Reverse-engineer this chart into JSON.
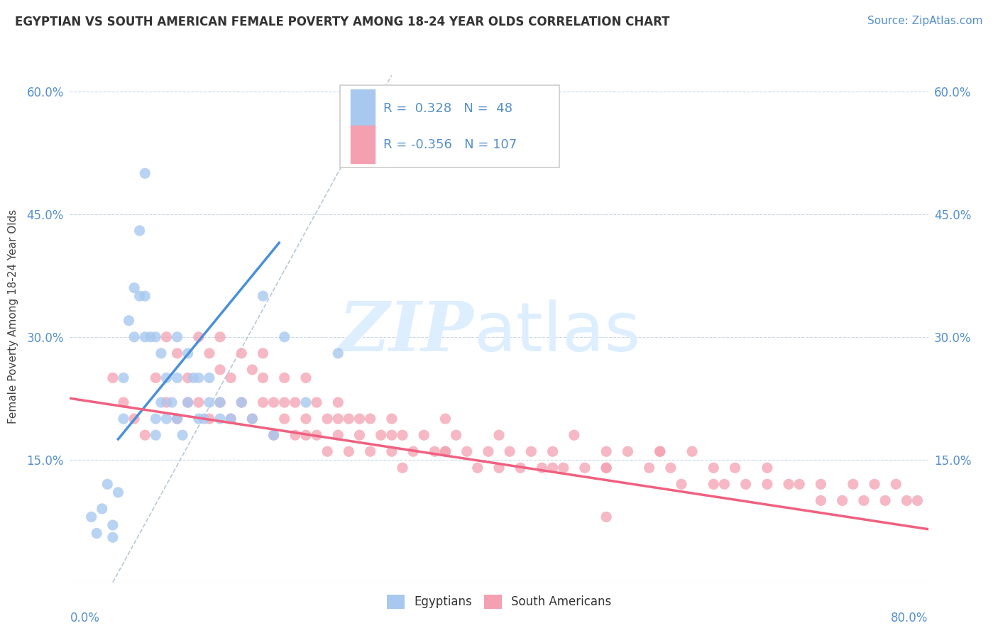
{
  "title": "EGYPTIAN VS SOUTH AMERICAN FEMALE POVERTY AMONG 18-24 YEAR OLDS CORRELATION CHART",
  "source": "Source: ZipAtlas.com",
  "ylabel": "Female Poverty Among 18-24 Year Olds",
  "xlim": [
    0.0,
    0.8
  ],
  "ylim": [
    0.0,
    0.65
  ],
  "ytick_labels": [
    "15.0%",
    "30.0%",
    "45.0%",
    "60.0%"
  ],
  "ytick_values": [
    0.15,
    0.3,
    0.45,
    0.6
  ],
  "legend_r_egyptian": "0.328",
  "legend_n_egyptian": "48",
  "legend_r_south_american": "-0.356",
  "legend_n_south_american": "107",
  "egyptian_color": "#a8c8f0",
  "south_american_color": "#f4a0b0",
  "egyptian_line_color": "#4a90d9",
  "south_american_line_color": "#f06080",
  "trendline_color": "#b8c8d8",
  "background_color": "#ffffff",
  "watermark_color": "#ddeeff",
  "tick_color": "#5590cc",
  "title_color": "#333333",
  "egyptians_scatter_x": [
    0.02,
    0.025,
    0.03,
    0.035,
    0.04,
    0.04,
    0.045,
    0.05,
    0.05,
    0.055,
    0.06,
    0.06,
    0.065,
    0.065,
    0.07,
    0.07,
    0.07,
    0.075,
    0.08,
    0.08,
    0.08,
    0.085,
    0.085,
    0.09,
    0.09,
    0.095,
    0.1,
    0.1,
    0.1,
    0.105,
    0.11,
    0.11,
    0.115,
    0.12,
    0.12,
    0.125,
    0.13,
    0.13,
    0.14,
    0.14,
    0.15,
    0.16,
    0.17,
    0.18,
    0.19,
    0.2,
    0.22,
    0.25
  ],
  "egyptians_scatter_y": [
    0.08,
    0.06,
    0.09,
    0.12,
    0.055,
    0.07,
    0.11,
    0.2,
    0.25,
    0.32,
    0.3,
    0.36,
    0.35,
    0.43,
    0.3,
    0.35,
    0.5,
    0.3,
    0.3,
    0.2,
    0.18,
    0.22,
    0.28,
    0.2,
    0.25,
    0.22,
    0.2,
    0.25,
    0.3,
    0.18,
    0.22,
    0.28,
    0.25,
    0.2,
    0.25,
    0.2,
    0.22,
    0.25,
    0.2,
    0.22,
    0.2,
    0.22,
    0.2,
    0.35,
    0.18,
    0.3,
    0.22,
    0.28
  ],
  "south_americans_scatter_x": [
    0.04,
    0.05,
    0.06,
    0.07,
    0.08,
    0.09,
    0.09,
    0.1,
    0.1,
    0.11,
    0.11,
    0.12,
    0.12,
    0.13,
    0.13,
    0.14,
    0.14,
    0.14,
    0.15,
    0.15,
    0.16,
    0.16,
    0.17,
    0.17,
    0.18,
    0.18,
    0.18,
    0.19,
    0.19,
    0.2,
    0.2,
    0.2,
    0.21,
    0.21,
    0.22,
    0.22,
    0.22,
    0.23,
    0.23,
    0.24,
    0.24,
    0.25,
    0.25,
    0.26,
    0.26,
    0.27,
    0.27,
    0.28,
    0.28,
    0.29,
    0.3,
    0.3,
    0.31,
    0.31,
    0.32,
    0.33,
    0.34,
    0.35,
    0.35,
    0.36,
    0.37,
    0.38,
    0.39,
    0.4,
    0.41,
    0.42,
    0.43,
    0.44,
    0.45,
    0.46,
    0.47,
    0.48,
    0.5,
    0.5,
    0.5,
    0.52,
    0.54,
    0.55,
    0.56,
    0.57,
    0.58,
    0.6,
    0.61,
    0.62,
    0.63,
    0.65,
    0.67,
    0.68,
    0.7,
    0.72,
    0.73,
    0.74,
    0.75,
    0.76,
    0.77,
    0.78,
    0.79,
    0.5,
    0.6,
    0.7,
    0.4,
    0.55,
    0.65,
    0.35,
    0.45,
    0.25,
    0.3
  ],
  "south_americans_scatter_y": [
    0.25,
    0.22,
    0.2,
    0.18,
    0.25,
    0.22,
    0.3,
    0.2,
    0.28,
    0.25,
    0.22,
    0.3,
    0.22,
    0.28,
    0.2,
    0.26,
    0.22,
    0.3,
    0.25,
    0.2,
    0.28,
    0.22,
    0.26,
    0.2,
    0.25,
    0.22,
    0.28,
    0.22,
    0.18,
    0.22,
    0.2,
    0.25,
    0.22,
    0.18,
    0.25,
    0.2,
    0.18,
    0.22,
    0.18,
    0.2,
    0.16,
    0.22,
    0.18,
    0.2,
    0.16,
    0.2,
    0.18,
    0.2,
    0.16,
    0.18,
    0.2,
    0.16,
    0.18,
    0.14,
    0.16,
    0.18,
    0.16,
    0.2,
    0.16,
    0.18,
    0.16,
    0.14,
    0.16,
    0.14,
    0.16,
    0.14,
    0.16,
    0.14,
    0.16,
    0.14,
    0.18,
    0.14,
    0.16,
    0.14,
    0.08,
    0.16,
    0.14,
    0.16,
    0.14,
    0.12,
    0.16,
    0.14,
    0.12,
    0.14,
    0.12,
    0.14,
    0.12,
    0.12,
    0.12,
    0.1,
    0.12,
    0.1,
    0.12,
    0.1,
    0.12,
    0.1,
    0.1,
    0.14,
    0.12,
    0.1,
    0.18,
    0.16,
    0.12,
    0.16,
    0.14,
    0.2,
    0.18
  ],
  "eg_line_x0": 0.045,
  "eg_line_x1": 0.195,
  "eg_line_y0": 0.175,
  "eg_line_y1": 0.415,
  "sa_line_x0": 0.0,
  "sa_line_x1": 0.8,
  "sa_line_y0": 0.225,
  "sa_line_y1": 0.065,
  "diag_line_x0": 0.04,
  "diag_line_x1": 0.3,
  "diag_line_y0": 0.0,
  "diag_line_y1": 0.62
}
